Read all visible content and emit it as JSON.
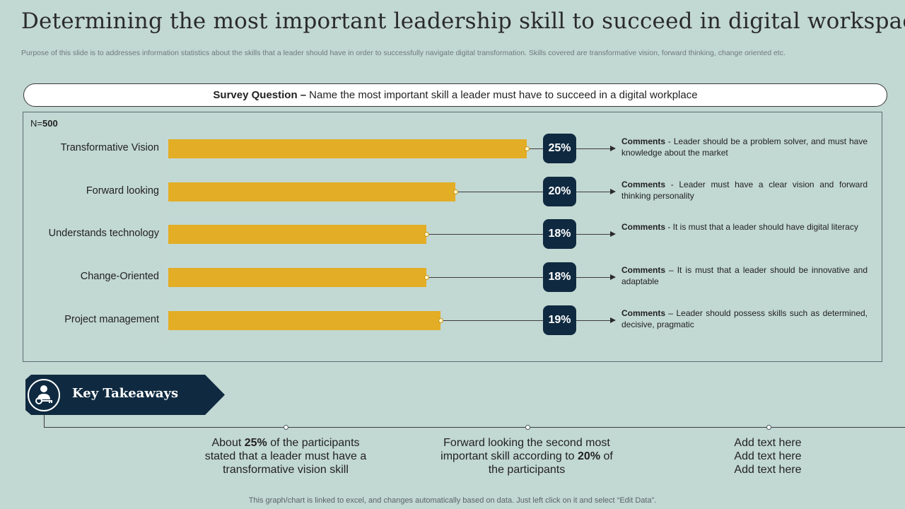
{
  "title": "Determining the most important leadership skill to succeed in digital workspace",
  "subtitle": "Purpose of this slide is to addresses information statistics about the skills that a leader should have in order to successfully navigate digital transformation. Skills covered are transformative vision, forward thinking, change oriented etc.",
  "survey": {
    "label": "Survey Question –",
    "question": "Name the most important skill a leader must have to succeed in a digital workplace"
  },
  "chart_data": {
    "type": "bar",
    "orientation": "horizontal",
    "sample_prefix": "N=",
    "sample_size": "500",
    "categories": [
      "Transformative Vision",
      "Forward looking",
      "Understands technology",
      "Change-Oriented",
      "Project management"
    ],
    "values": [
      25,
      20,
      18,
      18,
      19
    ],
    "value_labels": [
      "25%",
      "20%",
      "18%",
      "18%",
      "19%"
    ],
    "xlim": [
      0,
      25
    ],
    "comments": [
      {
        "label": "Comments",
        "text": " - Leader should be a problem solver, and must have knowledge about the market"
      },
      {
        "label": "Comments",
        "text": " - Leader must have a clear vision and forward thinking personality"
      },
      {
        "label": "Comments",
        "text": " - It is must that a leader should have digital literacy"
      },
      {
        "label": "Comments",
        "text": " – It is must that a leader should be innovative and adaptable"
      },
      {
        "label": "Comments",
        "text": " – Leader should possess skills such as determined, decisive, pragmatic"
      }
    ],
    "colors": {
      "bar": "#e3ad25",
      "badge": "#0f2a40"
    }
  },
  "key_takeaways": {
    "heading": "Key Takeaways",
    "items": [
      {
        "pre": "About ",
        "bold": "25%",
        "post": " of the participants stated that a leader must have a transformative vision skill"
      },
      {
        "pre": "Forward looking the second most important skill according to ",
        "bold": "20%",
        "post": " of the participants"
      },
      {
        "lines": [
          "Add text here",
          "Add text here",
          "Add text here"
        ]
      }
    ]
  },
  "footer": "This graph/chart is linked to excel, and changes automatically based on data. Just left click on it and select “Edit Data”."
}
